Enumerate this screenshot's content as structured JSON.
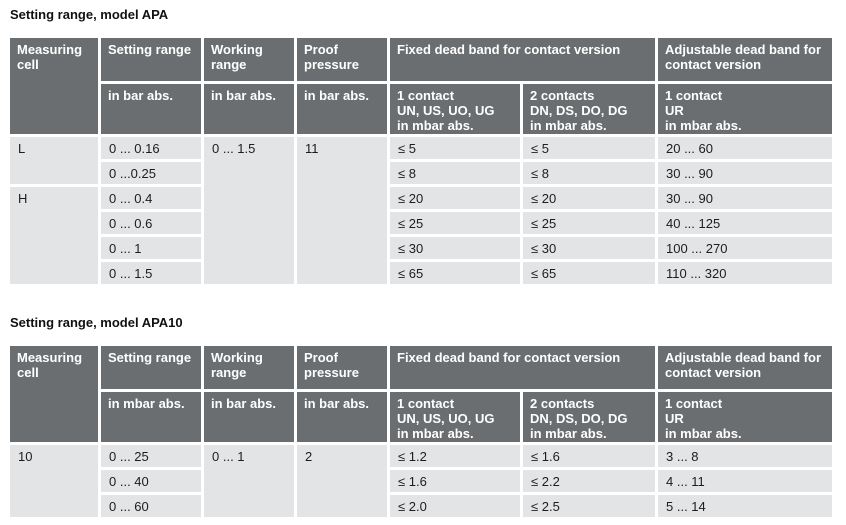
{
  "colors": {
    "header_bg": "#6b6e70",
    "header_text": "#ffffff",
    "row_bg": "#e3e4e5",
    "body_text": "#1d1d1b",
    "page_bg": "#ffffff"
  },
  "tables": [
    {
      "title": "Setting range, model APA",
      "header": {
        "measuring_cell": "Measuring cell",
        "setting_range": "Setting range",
        "working_range": "Working range",
        "proof_pressure": "Proof pressure",
        "fixed_dead_band": "Fixed dead band for contact version",
        "adjustable_dead_band": "Adjustable dead band for contact version",
        "setting_unit": "in bar abs.",
        "working_unit": "in bar abs.",
        "proof_unit": "in bar abs.",
        "contact_1": "1 contact\nUN, US, UO, UG\nin mbar abs.",
        "contact_2": "2 contacts\nDN, DS, DO, DG\nin mbar abs.",
        "contact_ur": "1 contact\nUR\nin mbar abs."
      },
      "rows": [
        {
          "cell": "L",
          "setting": "0 ... 0.16",
          "working": "0 ... 1.5",
          "proof": "11",
          "fixed_1": "≤ 5",
          "fixed_2": "≤ 5",
          "adjustable": "20 ... 60"
        },
        {
          "setting": "0 ...0.25",
          "fixed_1": "≤ 8",
          "fixed_2": "≤ 8",
          "adjustable": "30 ... 90"
        },
        {
          "cell": "H",
          "setting": "0 ... 0.4",
          "fixed_1": "≤ 20",
          "fixed_2": "≤ 20",
          "adjustable": "30 ... 90"
        },
        {
          "setting": "0 ... 0.6",
          "fixed_1": "≤ 25",
          "fixed_2": "≤ 25",
          "adjustable": "40 ... 125"
        },
        {
          "setting": "0 ... 1",
          "fixed_1": "≤ 30",
          "fixed_2": "≤ 30",
          "adjustable": "100 ... 270"
        },
        {
          "setting": "0 ... 1.5",
          "fixed_1": "≤ 65",
          "fixed_2": "≤ 65",
          "adjustable": "110 ... 320"
        }
      ]
    },
    {
      "title": "Setting range, model APA10",
      "header": {
        "measuring_cell": "Measuring cell",
        "setting_range": "Setting range",
        "working_range": "Working range",
        "proof_pressure": "Proof pressure",
        "fixed_dead_band": "Fixed dead band for contact version",
        "adjustable_dead_band": "Adjustable dead band for contact version",
        "setting_unit": "in mbar abs.",
        "working_unit": "in bar abs.",
        "proof_unit": "in bar abs.",
        "contact_1": "1 contact\nUN, US, UO, UG\nin mbar abs.",
        "contact_2": "2 contacts\nDN, DS, DO, DG\nin mbar abs.",
        "contact_ur": "1 contact\nUR\nin mbar abs."
      },
      "rows": [
        {
          "cell": "10",
          "setting": "0 ... 25",
          "working": "0 ... 1",
          "proof": "2",
          "fixed_1": "≤ 1.2",
          "fixed_2": "≤ 1.6",
          "adjustable": "3 ... 8"
        },
        {
          "setting": "0 ... 40",
          "fixed_1": "≤ 1.6",
          "fixed_2": "≤ 2.2",
          "adjustable": "4 ... 11"
        },
        {
          "setting": "0 ... 60",
          "fixed_1": "≤ 2.0",
          "fixed_2": "≤ 2.5",
          "adjustable": "5 ... 14"
        }
      ]
    }
  ]
}
